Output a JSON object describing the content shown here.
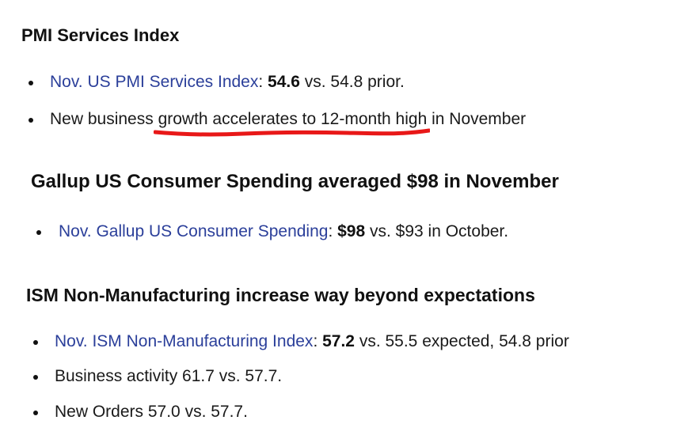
{
  "sections": [
    {
      "heading": "PMI Services Index",
      "bullets": [
        {
          "link": "Nov. US PMI Services Index",
          "sep": ": ",
          "value": "54.6",
          "rest": " vs. 54.8 prior."
        },
        {
          "before": "New business ",
          "highlighted": "growth accelerates to 12-month high",
          "after": " in November"
        }
      ]
    },
    {
      "heading": "Gallup US Consumer Spending averaged $98 in November",
      "bullets": [
        {
          "link": "Nov. Gallup US Consumer Spending",
          "sep": ": ",
          "value": "$98",
          "rest": " vs. $93 in October."
        }
      ]
    },
    {
      "heading": "ISM Non-Manufacturing increase way beyond expectations",
      "bullets": [
        {
          "link": "Nov. ISM Non-Manufacturing Index",
          "sep": ": ",
          "value": "57.2",
          "rest": " vs. 55.5 expected, 54.8 prior"
        },
        {
          "text": "Business activity 61.7 vs. 57.7."
        },
        {
          "text": "New Orders 57.0 vs. 57.7."
        }
      ]
    }
  ],
  "colors": {
    "link": "#2b3f9a",
    "underline": "#e81818",
    "text": "#1a1a1a"
  }
}
